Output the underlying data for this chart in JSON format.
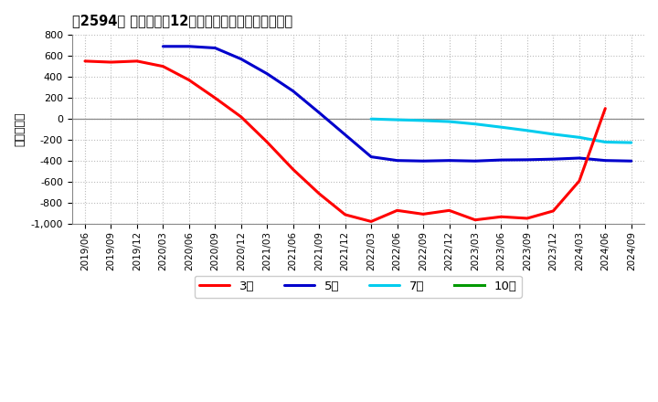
{
  "title": "［2594］ 当期純利益12か月移動合計の平均値の推移",
  "ylabel": "（百万円）",
  "background_color": "#ffffff",
  "plot_background_color": "#ffffff",
  "grid_color": "#bbbbbb",
  "ylim": [
    -1000,
    800
  ],
  "yticks": [
    -1000,
    -800,
    -600,
    -400,
    -200,
    0,
    200,
    400,
    600,
    800
  ],
  "line_colors": {
    "3年": "#ff0000",
    "5年": "#0000cc",
    "7年": "#00ccee",
    "10年": "#009900"
  },
  "line_widths": {
    "3年": 2.2,
    "5年": 2.2,
    "7年": 2.2,
    "10年": 2.2
  },
  "x_labels": [
    "2019/06",
    "2019/09",
    "2019/12",
    "2020/03",
    "2020/06",
    "2020/09",
    "2020/12",
    "2021/03",
    "2021/06",
    "2021/09",
    "2021/12",
    "2022/03",
    "2022/06",
    "2022/09",
    "2022/12",
    "2023/03",
    "2023/06",
    "2023/09",
    "2023/12",
    "2024/03",
    "2024/06",
    "2024/09"
  ],
  "series_3_x": [
    0,
    1,
    2,
    3,
    4,
    5,
    6,
    7,
    8,
    9,
    10,
    11,
    12,
    13,
    14,
    15,
    16,
    17,
    18,
    19,
    20
  ],
  "series_3_y": [
    550,
    540,
    550,
    500,
    370,
    200,
    20,
    -220,
    -480,
    -710,
    -910,
    -975,
    -870,
    -905,
    -870,
    -960,
    -930,
    -945,
    -875,
    -590,
    100
  ],
  "series_5_x": [
    3,
    4,
    5,
    6,
    7,
    8,
    9,
    10,
    11,
    12,
    13,
    14,
    15,
    16,
    17,
    18,
    19,
    20,
    21
  ],
  "series_5_y": [
    690,
    690,
    675,
    570,
    430,
    265,
    60,
    -150,
    -360,
    -395,
    -400,
    -395,
    -400,
    -390,
    -388,
    -382,
    -372,
    -395,
    -400
  ],
  "series_7_x": [
    11,
    12,
    13,
    14,
    15,
    16,
    17,
    18,
    19,
    20,
    21
  ],
  "series_7_y": [
    0,
    -8,
    -15,
    -25,
    -48,
    -78,
    -110,
    -145,
    -175,
    -220,
    -225
  ],
  "series_10_x": [],
  "series_10_y": []
}
